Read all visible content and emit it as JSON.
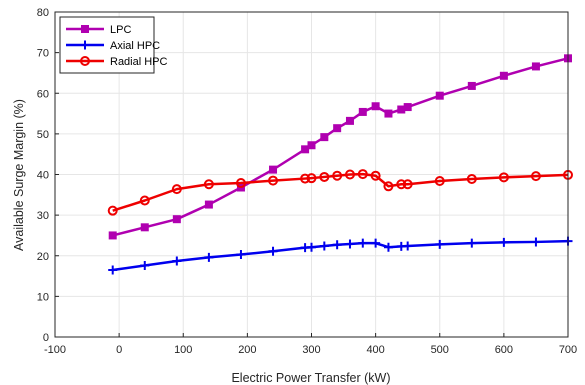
{
  "chart_data": {
    "type": "line",
    "title": "",
    "xlabel": "Electric Power Transfer (kW)",
    "ylabel": "Available Surge Margin (%)",
    "xlim": [
      -100,
      700
    ],
    "ylim": [
      0,
      80
    ],
    "xticks": [
      -100,
      0,
      100,
      200,
      300,
      400,
      500,
      600,
      700
    ],
    "yticks": [
      0,
      10,
      20,
      30,
      40,
      50,
      60,
      70,
      80
    ],
    "grid": true,
    "legend_position": "top-left",
    "series": [
      {
        "name": "LPC",
        "color": "#b000b0",
        "marker": "square",
        "x": [
          -10,
          40,
          90,
          140,
          190,
          240,
          290,
          300,
          320,
          340,
          360,
          380,
          400,
          420,
          440,
          450,
          500,
          550,
          600,
          650,
          700
        ],
        "y": [
          25,
          27,
          29,
          32.6,
          36.8,
          41.2,
          46.2,
          47.2,
          49.2,
          51.4,
          53.2,
          55.4,
          56.8,
          55,
          56,
          56.6,
          59.4,
          61.8,
          64.3,
          66.6,
          68.6
        ]
      },
      {
        "name": "Axial HPC",
        "color": "#0000ee",
        "marker": "plus",
        "x": [
          -10,
          40,
          90,
          140,
          190,
          240,
          290,
          300,
          320,
          340,
          360,
          380,
          400,
          420,
          440,
          450,
          500,
          550,
          600,
          650,
          700
        ],
        "y": [
          16.5,
          17.6,
          18.7,
          19.6,
          20.3,
          21.1,
          22,
          22.1,
          22.4,
          22.7,
          22.9,
          23.1,
          23.1,
          22.1,
          22.3,
          22.4,
          22.8,
          23.1,
          23.3,
          23.4,
          23.6
        ]
      },
      {
        "name": "Radial HPC",
        "color": "#ee0000",
        "marker": "circle",
        "x": [
          -10,
          40,
          90,
          140,
          190,
          240,
          290,
          300,
          320,
          340,
          360,
          380,
          400,
          420,
          440,
          450,
          500,
          550,
          600,
          650,
          700
        ],
        "y": [
          31.1,
          33.6,
          36.4,
          37.6,
          37.9,
          38.5,
          39,
          39.1,
          39.4,
          39.7,
          40,
          40.1,
          39.7,
          37.1,
          37.6,
          37.6,
          38.4,
          38.9,
          39.3,
          39.6,
          39.9
        ]
      }
    ]
  }
}
